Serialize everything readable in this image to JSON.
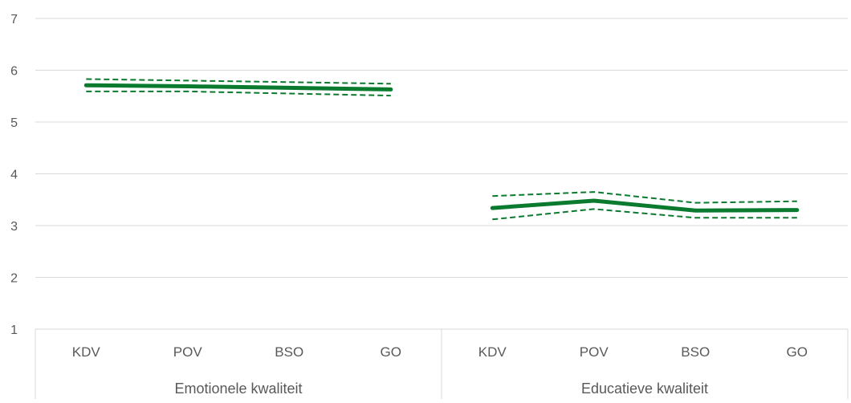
{
  "chart_data": {
    "type": "line",
    "ylim": [
      1,
      7
    ],
    "yticks": [
      "1",
      "2",
      "3",
      "4",
      "5",
      "6",
      "7"
    ],
    "grid": true,
    "groups": [
      {
        "label": "Emotionele kwaliteit",
        "categories": [
          "KDV",
          "POV",
          "BSO",
          "GO"
        ],
        "mean": [
          5.71,
          5.69,
          5.66,
          5.63
        ],
        "upper": [
          5.83,
          5.8,
          5.77,
          5.74
        ],
        "lower": [
          5.59,
          5.59,
          5.55,
          5.51
        ]
      },
      {
        "label": "Educatieve kwaliteit",
        "categories": [
          "KDV",
          "POV",
          "BSO",
          "GO"
        ],
        "mean": [
          3.34,
          3.48,
          3.29,
          3.3
        ],
        "upper": [
          3.57,
          3.65,
          3.44,
          3.47
        ],
        "lower": [
          3.12,
          3.32,
          3.15,
          3.15
        ]
      }
    ],
    "colors": {
      "line": "#0a7a2f",
      "grid": "#d9d9d9",
      "text": "#595959"
    }
  }
}
